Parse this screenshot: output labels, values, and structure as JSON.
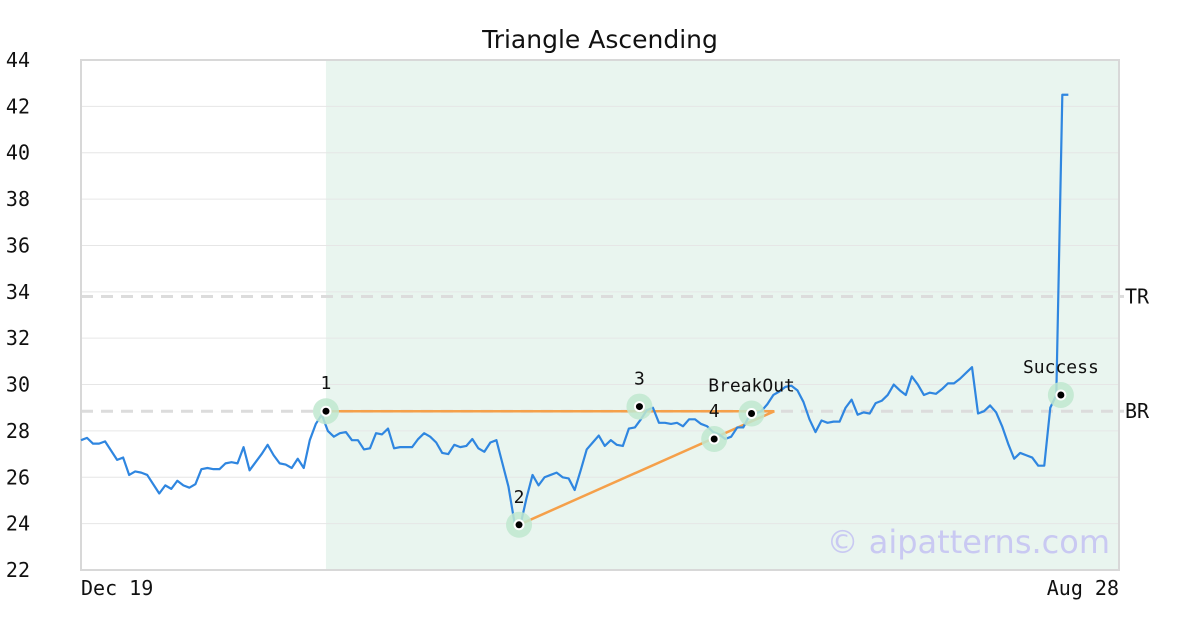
{
  "chart_data": {
    "type": "line",
    "title": "Triangle Ascending",
    "ylim": [
      22,
      44
    ],
    "y_ticks": [
      22,
      24,
      26,
      28,
      30,
      32,
      34,
      36,
      38,
      40,
      42,
      44
    ],
    "x_range": [
      0,
      250
    ],
    "x_tick_labels": [
      {
        "x": 0,
        "label": "Dec 19"
      },
      {
        "x": 250,
        "label": "Aug 28"
      }
    ],
    "grid": true,
    "line_color": "#2f86e0",
    "shade": {
      "x_start": 59,
      "x_end": 250,
      "color": "#e9f5ef"
    },
    "series": [
      {
        "values": [
          27.6,
          27.7,
          27.45,
          27.45,
          27.55,
          27.15,
          26.75,
          26.85,
          26.1,
          26.25,
          26.2,
          26.1,
          25.7,
          25.3,
          25.65,
          25.5,
          25.85,
          25.65,
          25.55,
          25.7,
          26.35,
          26.4,
          26.35,
          26.35,
          26.6,
          26.65,
          26.6,
          27.3,
          26.3,
          26.65,
          27.0,
          27.4,
          26.95,
          26.6,
          26.55,
          26.4,
          26.8,
          26.4,
          27.6,
          28.3,
          28.7,
          28.0,
          27.75,
          27.9,
          27.95,
          27.6,
          27.6,
          27.2,
          27.25,
          27.9,
          27.85,
          28.1,
          27.25,
          27.3,
          27.3,
          27.3,
          27.65,
          27.9,
          27.75,
          27.5,
          27.05,
          27.0,
          27.4,
          27.3,
          27.35,
          27.65,
          27.25,
          27.1,
          27.5,
          27.6,
          26.6,
          25.6,
          24.05,
          23.95,
          25.1,
          26.1,
          25.65,
          26.0,
          26.1,
          26.2,
          26.0,
          25.95,
          25.45,
          26.3,
          27.2,
          27.5,
          27.8,
          27.35,
          27.6,
          27.4,
          27.35,
          28.1,
          28.15,
          28.5,
          28.9,
          29.0,
          28.35,
          28.35,
          28.3,
          28.35,
          28.2,
          28.5,
          28.5,
          28.3,
          28.2,
          27.95,
          27.85,
          27.65,
          27.75,
          28.15,
          28.15,
          28.65,
          28.75,
          28.85,
          29.15,
          29.55,
          29.7,
          29.9,
          29.95,
          29.75,
          29.25,
          28.5,
          27.95,
          28.45,
          28.35,
          28.4,
          28.4,
          29.0,
          29.35,
          28.7,
          28.8,
          28.75,
          29.2,
          29.3,
          29.55,
          30.0,
          29.75,
          29.55,
          30.35,
          30.0,
          29.55,
          29.65,
          29.6,
          29.8,
          30.05,
          30.05,
          30.25,
          30.5,
          30.75,
          28.75,
          28.85,
          29.1,
          28.8,
          28.2,
          27.45,
          26.8,
          27.05,
          26.95,
          26.85,
          26.5,
          26.5,
          29.0,
          29.55,
          42.5,
          42.5
        ],
        "x_step": 1.45
      }
    ],
    "levels": [
      {
        "name": "TR",
        "value": 33.8,
        "label": "TR"
      },
      {
        "name": "BR",
        "value": 28.85,
        "label": "BR"
      }
    ],
    "points": [
      {
        "label": "1",
        "x": 59.0,
        "y": 28.85,
        "label_pos": "above"
      },
      {
        "label": "2",
        "x": 105.5,
        "y": 23.95,
        "label_pos": "above"
      },
      {
        "label": "3",
        "x": 134.5,
        "y": 29.05,
        "label_pos": "above"
      },
      {
        "label": "4",
        "x": 152.5,
        "y": 27.65,
        "label_pos": "above"
      },
      {
        "label": "BreakOut",
        "x": 161.5,
        "y": 28.75,
        "label_pos": "above-left"
      },
      {
        "label": "Success",
        "x": 236.0,
        "y": 29.55,
        "label_pos": "above"
      }
    ],
    "trend_lines": [
      {
        "from": [
          59.0,
          28.85
        ],
        "to": [
          167.0,
          28.85
        ],
        "color": "#f5a04a"
      },
      {
        "from": [
          105.5,
          23.95
        ],
        "to": [
          167.0,
          28.85
        ],
        "color": "#f5a04a"
      }
    ],
    "watermark": "© aipatterns.com"
  }
}
